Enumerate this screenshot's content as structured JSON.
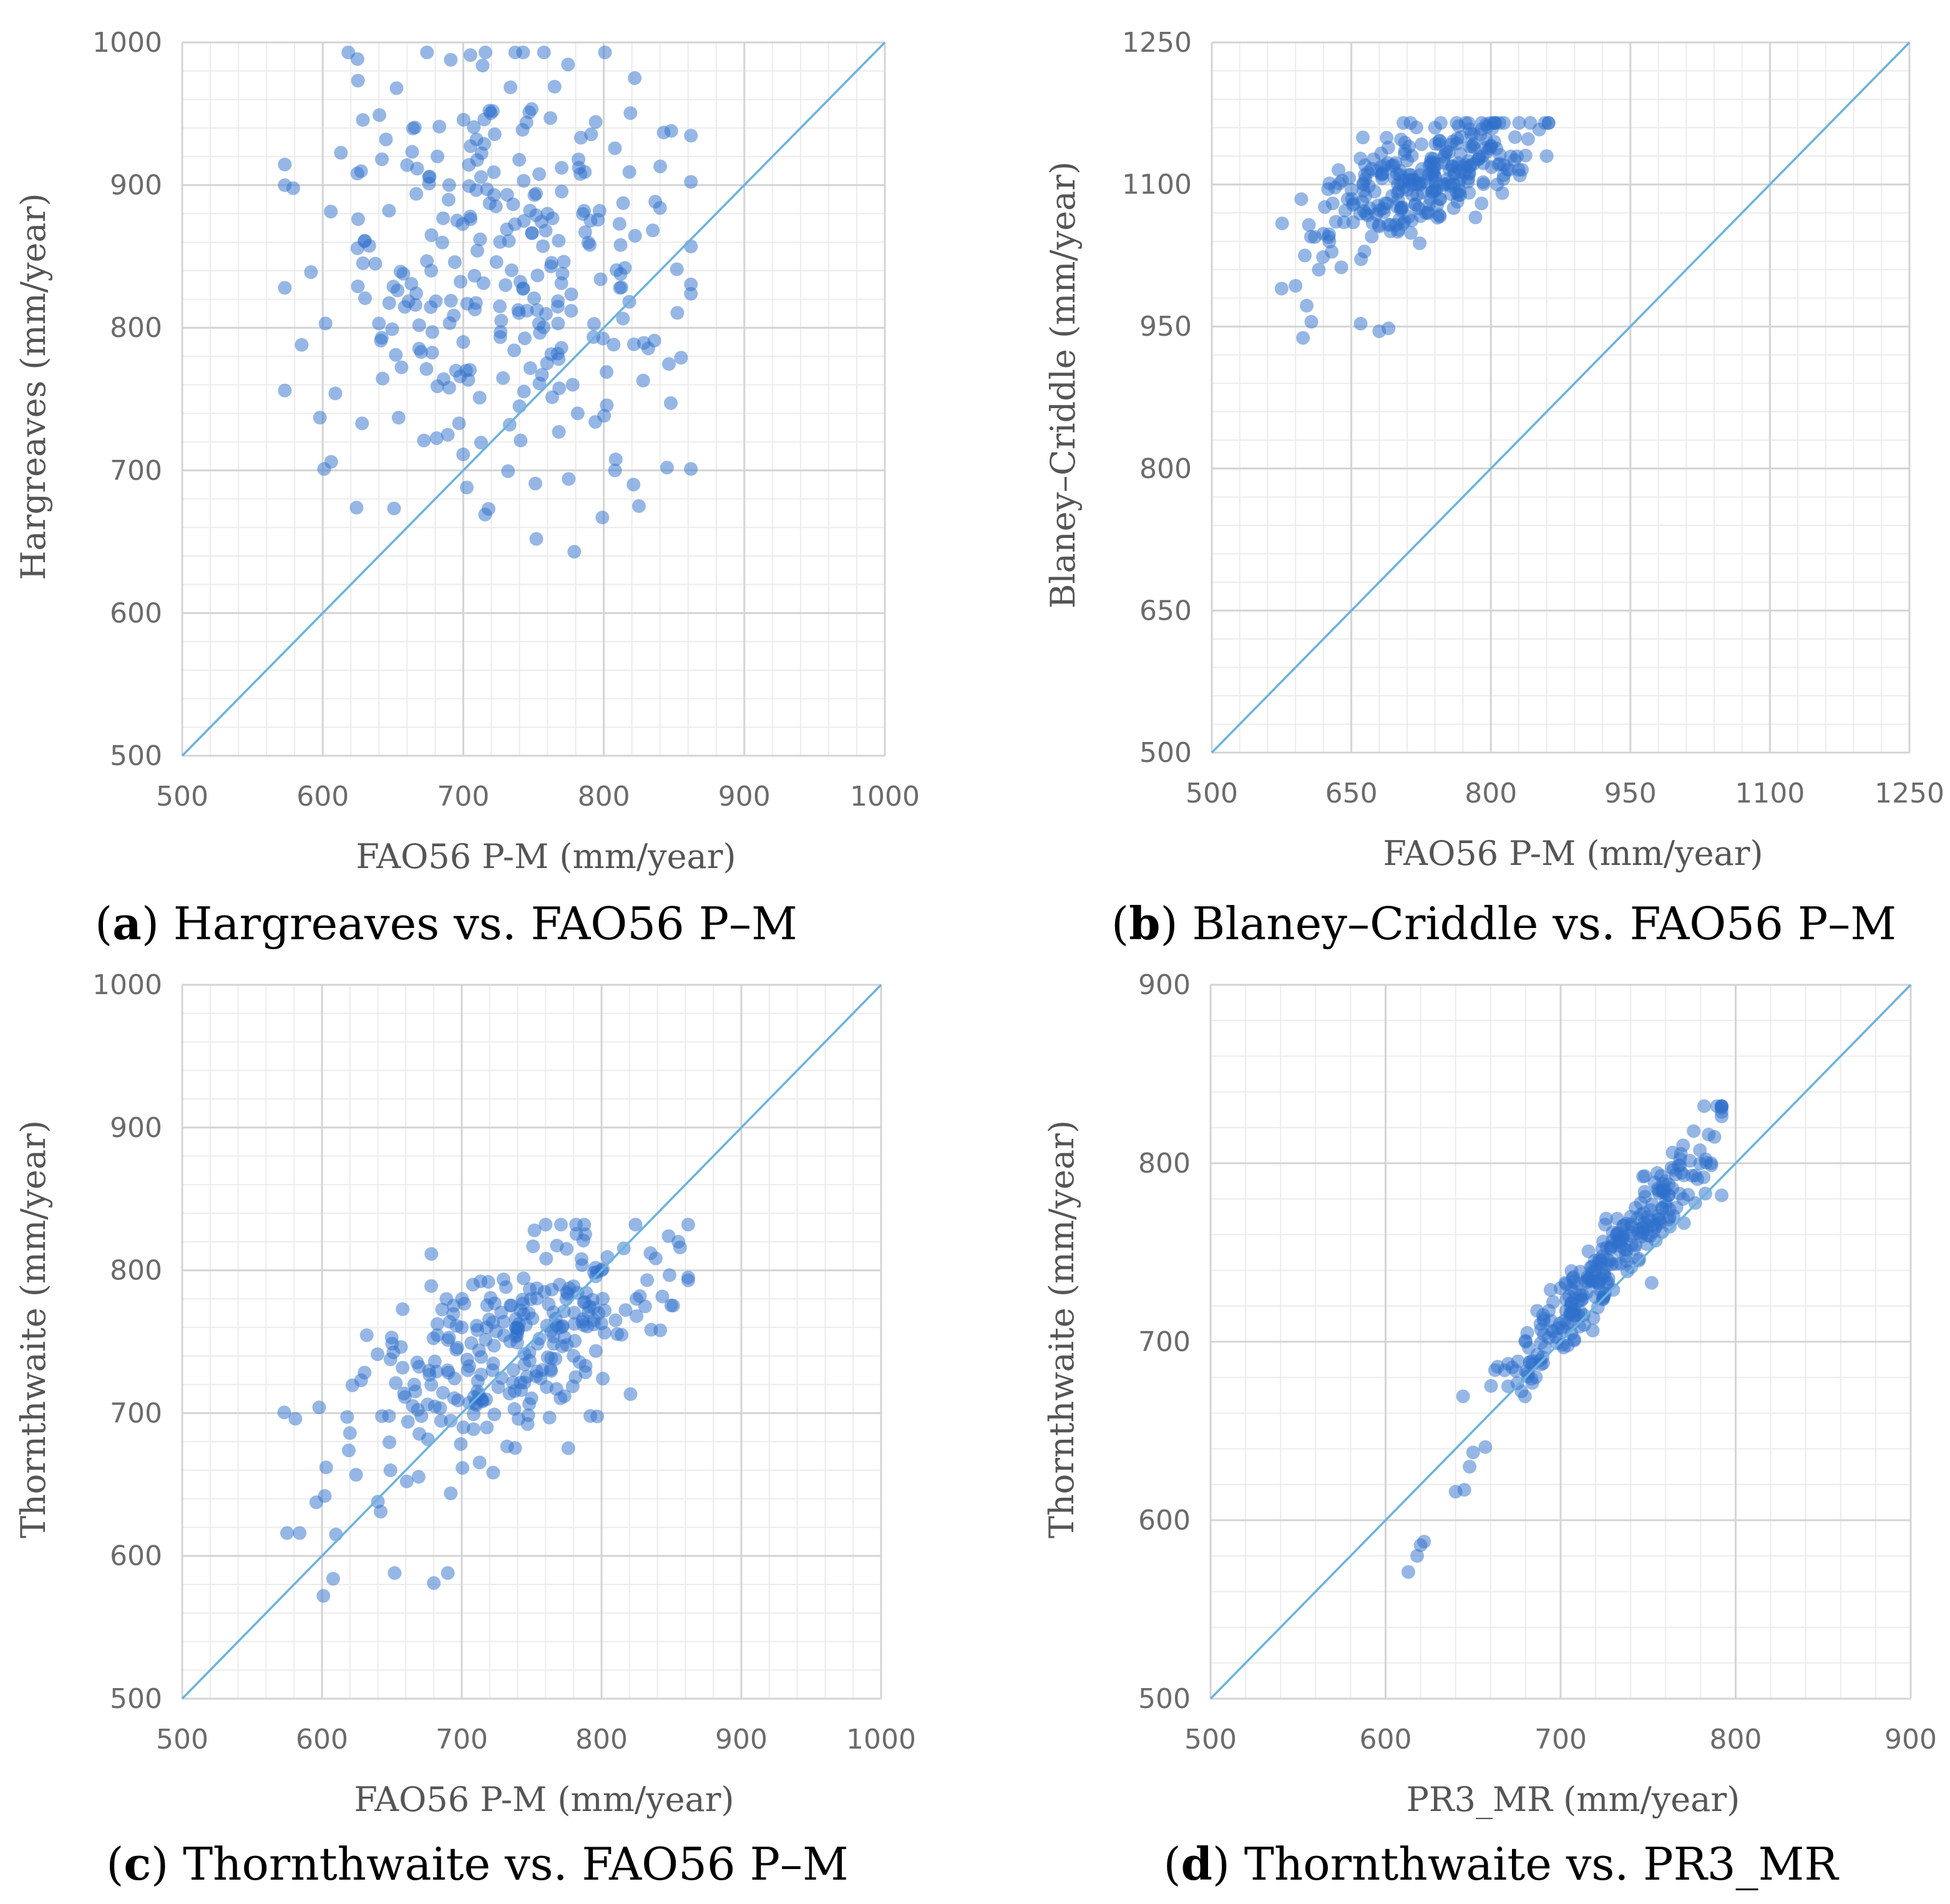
{
  "chart_data": [
    {
      "panel_letter": "a",
      "type": "scatter",
      "caption": "Hargreaves vs. FAO56 P–M",
      "xlabel": "FAO56 P-M (mm/year)",
      "ylabel": "Hargreaves (mm/year)",
      "xlim": [
        500,
        1000
      ],
      "ylim": [
        500,
        1000
      ],
      "xticks": [
        500,
        600,
        700,
        800,
        900,
        1000
      ],
      "yticks": [
        500,
        600,
        700,
        800,
        900,
        1000
      ],
      "minor_step": 20,
      "identity_line": true,
      "seed": 11,
      "n_points": 300,
      "approx_distribution": {
        "x_mean": 725,
        "x_sd": 62,
        "y_mean": 845,
        "y_sd": 72,
        "x_range": [
          573,
          862
        ],
        "y_range": [
          643,
          993
        ],
        "correlation": 0.05
      },
      "points": [
        [
          573,
          756
        ],
        [
          585,
          788
        ],
        [
          598,
          737
        ],
        [
          602,
          803
        ],
        [
          601,
          701
        ],
        [
          606,
          706
        ],
        [
          609,
          754
        ],
        [
          625,
          829
        ],
        [
          628,
          733
        ],
        [
          630,
          861
        ],
        [
          642,
          793
        ],
        [
          645,
          932
        ],
        [
          640,
          803
        ],
        [
          652,
          781
        ],
        [
          654,
          737
        ],
        [
          660,
          914
        ],
        [
          666,
          816
        ],
        [
          670,
          783
        ],
        [
          672,
          721
        ],
        [
          678,
          797
        ],
        [
          683,
          941
        ],
        [
          686,
          764
        ],
        [
          689,
          725
        ],
        [
          690,
          758
        ],
        [
          694,
          846
        ],
        [
          697,
          733
        ],
        [
          700,
          790
        ],
        [
          702,
          770
        ],
        [
          705,
          878
        ],
        [
          710,
          854
        ],
        [
          715,
          946
        ],
        [
          718,
          673
        ],
        [
          721,
          952
        ],
        [
          727,
          805
        ],
        [
          733,
          732
        ],
        [
          737,
          993
        ],
        [
          740,
          745
        ],
        [
          747,
          951
        ],
        [
          752,
          652
        ],
        [
          756,
          767
        ],
        [
          762,
          947
        ],
        [
          765,
          969
        ],
        [
          768,
          727
        ],
        [
          775,
          694
        ],
        [
          779,
          643
        ],
        [
          782,
          918
        ],
        [
          786,
          882
        ],
        [
          790,
          858
        ],
        [
          794,
          734
        ],
        [
          797,
          882
        ],
        [
          799,
          667
        ],
        [
          802,
          769
        ],
        [
          808,
          700
        ],
        [
          815,
          842
        ],
        [
          822,
          975
        ],
        [
          825,
          675
        ],
        [
          828,
          763
        ],
        [
          836,
          791
        ],
        [
          840,
          884
        ],
        [
          845,
          702
        ],
        [
          848,
          938
        ],
        [
          852,
          841
        ],
        [
          855,
          779
        ],
        [
          862,
          701
        ],
        [
          726,
          815
        ],
        [
          743,
          903
        ],
        [
          712,
          862
        ],
        [
          760,
          880
        ],
        [
          731,
          869
        ],
        [
          690,
          900
        ]
      ]
    },
    {
      "panel_letter": "b",
      "type": "scatter",
      "caption": "Blaney–Criddle vs. FAO56 P–M",
      "xlabel": "FAO56 P-M (mm/year)",
      "ylabel": "Blaney–Criddle  (mm/year)",
      "xlim": [
        500,
        1250
      ],
      "ylim": [
        500,
        1250
      ],
      "xticks": [
        500,
        650,
        800,
        950,
        1100,
        1250
      ],
      "yticks": [
        500,
        650,
        800,
        950,
        1100,
        1250
      ],
      "minor_step": 30,
      "identity_line": true,
      "seed": 22,
      "n_points": 300,
      "approx_distribution": {
        "x_mean": 740,
        "x_sd": 55,
        "y_mean": 1110,
        "y_sd": 35,
        "x_range": [
          573,
          862
        ],
        "y_range": [
          940,
          1165
        ],
        "correlation": 0.6
      },
      "points": [
        [
          575,
          990
        ],
        [
          590,
          993
        ],
        [
          598,
          938
        ],
        [
          602,
          972
        ],
        [
          607,
          955
        ],
        [
          600,
          1025
        ],
        [
          615,
          1010
        ],
        [
          620,
          1048
        ],
        [
          625,
          1095
        ],
        [
          630,
          1080
        ],
        [
          642,
          1060
        ],
        [
          652,
          1060
        ],
        [
          660,
          953
        ],
        [
          670,
          1075
        ],
        [
          680,
          945
        ],
        [
          686,
          1120
        ],
        [
          690,
          948
        ],
        [
          700,
          1100
        ],
        [
          712,
          1140
        ],
        [
          724,
          1110
        ],
        [
          734,
          1120
        ],
        [
          740,
          1160
        ],
        [
          752,
          1135
        ],
        [
          760,
          1100
        ],
        [
          768,
          1150
        ],
        [
          776,
          1125
        ],
        [
          790,
          1080
        ],
        [
          800,
          1140
        ],
        [
          814,
          1110
        ],
        [
          826,
          1150
        ],
        [
          840,
          1148
        ],
        [
          852,
          1158
        ],
        [
          860,
          1130
        ],
        [
          700,
          1050
        ],
        [
          715,
          1062
        ],
        [
          730,
          1070
        ],
        [
          745,
          1085
        ],
        [
          760,
          1075
        ],
        [
          778,
          1120
        ],
        [
          806,
          1138
        ]
      ]
    },
    {
      "panel_letter": "c",
      "type": "scatter",
      "caption": "Thornthwaite vs. FAO56 P–M",
      "xlabel": "FAO56 P-M (mm/year)",
      "ylabel": "Thornthwaite  (mm/year)",
      "xlim": [
        500,
        1000
      ],
      "ylim": [
        500,
        1000
      ],
      "xticks": [
        500,
        600,
        700,
        800,
        900,
        1000
      ],
      "yticks": [
        500,
        600,
        700,
        800,
        900,
        1000
      ],
      "minor_step": 20,
      "identity_line": true,
      "seed": 33,
      "n_points": 300,
      "approx_distribution": {
        "x_mean": 735,
        "x_sd": 55,
        "y_mean": 745,
        "y_sd": 40,
        "x_range": [
          573,
          862
        ],
        "y_range": [
          570,
          832
        ],
        "correlation": 0.55
      },
      "points": [
        [
          575,
          616
        ],
        [
          584,
          616
        ],
        [
          598,
          704
        ],
        [
          601,
          572
        ],
        [
          602,
          642
        ],
        [
          603,
          662
        ],
        [
          608,
          584
        ],
        [
          610,
          615
        ],
        [
          620,
          686
        ],
        [
          628,
          723
        ],
        [
          640,
          638
        ],
        [
          642,
          631
        ],
        [
          652,
          588
        ],
        [
          665,
          705
        ],
        [
          680,
          581
        ],
        [
          690,
          588
        ],
        [
          690,
          730
        ],
        [
          700,
          760
        ],
        [
          708,
          790
        ],
        [
          714,
          710
        ],
        [
          722,
          730
        ],
        [
          730,
          764
        ],
        [
          740,
          760
        ],
        [
          748,
          770
        ],
        [
          752,
          828
        ],
        [
          760,
          832
        ],
        [
          770,
          790
        ],
        [
          775,
          815
        ],
        [
          780,
          740
        ],
        [
          792,
          698
        ],
        [
          800,
          800
        ],
        [
          810,
          765
        ],
        [
          825,
          780
        ],
        [
          835,
          812
        ],
        [
          842,
          758
        ],
        [
          848,
          824
        ],
        [
          855,
          820
        ],
        [
          862,
          793
        ]
      ]
    },
    {
      "panel_letter": "d",
      "type": "scatter",
      "caption": "Thornthwaite vs. PR3_MR",
      "xlabel": "PR3_MR (mm/year)",
      "ylabel": "Thornthwaite  (mm/year)",
      "xlim": [
        500,
        900
      ],
      "ylim": [
        500,
        900
      ],
      "xticks": [
        500,
        600,
        700,
        800,
        900
      ],
      "yticks": [
        500,
        600,
        700,
        800,
        900
      ],
      "minor_step": 20,
      "identity_line": true,
      "seed": 44,
      "n_points": 300,
      "approx_distribution": {
        "x_mean": 730,
        "x_sd": 32,
        "y_mean": 747,
        "y_sd": 37,
        "x_range": [
          613,
          792
        ],
        "y_range": [
          570,
          832
        ],
        "correlation": 0.95
      },
      "points": [
        [
          613,
          571
        ],
        [
          618,
          580
        ],
        [
          620,
          586
        ],
        [
          622,
          588
        ],
        [
          640,
          616
        ],
        [
          645,
          617
        ],
        [
          648,
          630
        ],
        [
          650,
          638
        ],
        [
          657,
          641
        ],
        [
          664,
          686
        ],
        [
          668,
          684
        ],
        [
          670,
          675
        ],
        [
          680,
          700
        ],
        [
          690,
          715
        ],
        [
          700,
          730
        ],
        [
          708,
          724
        ],
        [
          716,
          735
        ],
        [
          724,
          748
        ],
        [
          732,
          760
        ],
        [
          740,
          770
        ],
        [
          748,
          784
        ],
        [
          752,
          733
        ],
        [
          760,
          790
        ],
        [
          764,
          806
        ],
        [
          770,
          810
        ],
        [
          776,
          818
        ],
        [
          782,
          832
        ],
        [
          786,
          800
        ],
        [
          792,
          782
        ],
        [
          726,
          769
        ],
        [
          742,
          752
        ],
        [
          758,
          775
        ],
        [
          690,
          688
        ],
        [
          702,
          706
        ],
        [
          718,
          742
        ],
        [
          770,
          780
        ]
      ]
    }
  ]
}
